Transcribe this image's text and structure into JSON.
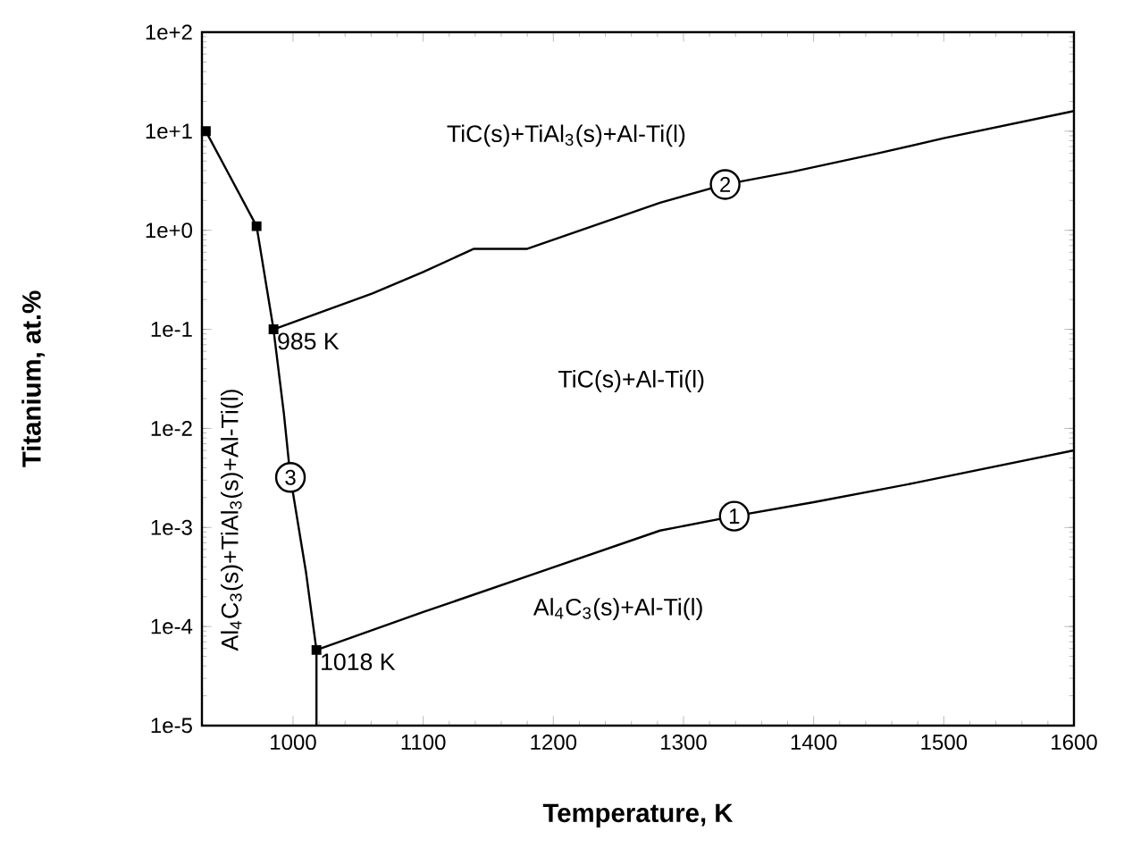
{
  "chart_data": {
    "type": "line",
    "xlabel": "Temperature, K",
    "ylabel": "Titanium, at.%",
    "log": "y",
    "xlim": [
      930,
      1600
    ],
    "xticks": [
      1000,
      1100,
      1200,
      1300,
      1400,
      1500,
      1600
    ],
    "ylim": [
      1e-05,
      100
    ],
    "yticks": [
      {
        "value": 1e-05,
        "label": "1e-5"
      },
      {
        "value": 0.0001,
        "label": "1e-4"
      },
      {
        "value": 0.001,
        "label": "1e-3"
      },
      {
        "value": 0.01,
        "label": "1e-2"
      },
      {
        "value": 0.1,
        "label": "1e-1"
      },
      {
        "value": 1,
        "label": "1e+0"
      },
      {
        "value": 10,
        "label": "1e+1"
      },
      {
        "value": 100,
        "label": "1e+2"
      }
    ],
    "grid": false,
    "line_style": "solid",
    "series": [
      {
        "name": "1",
        "color": "#000000",
        "x": [
          1018,
          1100,
          1191,
          1282,
          1339,
          1400,
          1477,
          1600
        ],
        "values": [
          5.8e-05,
          0.00014,
          0.00036,
          0.00093,
          0.0013,
          0.0018,
          0.0028,
          0.006
        ]
      },
      {
        "name": "2",
        "color": "#000000",
        "x": [
          985,
          1061,
          1100,
          1139,
          1180,
          1282,
          1332,
          1384,
          1450,
          1500,
          1600
        ],
        "values": [
          0.1,
          0.23,
          0.38,
          0.65,
          0.65,
          1.9,
          2.9,
          3.9,
          6,
          8.5,
          16
        ]
      },
      {
        "name": "3",
        "color": "#000000",
        "x": [
          933,
          972,
          985,
          993,
          998,
          1010,
          1018,
          1018
        ],
        "values": [
          10,
          1.1,
          0.1,
          0.014,
          0.0032,
          0.00035,
          5.8e-05,
          1e-05
        ]
      },
      {
        "type": "scatter",
        "marker": "square",
        "color": "#000000",
        "x": [
          933,
          972,
          985,
          1018
        ],
        "values": [
          10,
          1.1,
          0.1,
          5.8e-05
        ]
      }
    ],
    "annotations": [
      "TiC(s)+TiAl$_{3}$(s)+Al-Ti(l)",
      "TiC(s)+Al-Ti(l)",
      "Al$_{4}$C$_{3}$(s)+Al-Ti(l)",
      "Al$_{4}$C$_{3}$(s)+TiAl$_{3}$(s)+Al-Ti(l)",
      {
        "text": "985 K",
        "x": 985,
        "y": 0.1
      },
      {
        "text": "1018 K",
        "x": 1018,
        "y": 5.8e-05
      }
    ]
  }
}
